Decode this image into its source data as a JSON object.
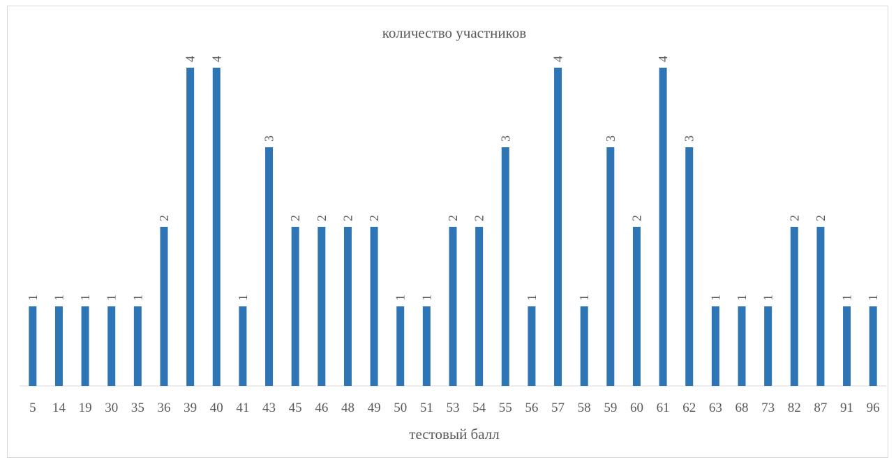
{
  "chart_data": {
    "type": "bar",
    "title": "количество участников",
    "xlabel": "тестовый балл",
    "ylabel": "",
    "ylim": [
      0,
      4
    ],
    "grid": false,
    "legend": "none",
    "bar_color": "#2e75b6",
    "categories": [
      "5",
      "14",
      "19",
      "30",
      "35",
      "36",
      "39",
      "40",
      "41",
      "43",
      "45",
      "46",
      "48",
      "49",
      "50",
      "51",
      "53",
      "54",
      "55",
      "56",
      "57",
      "58",
      "59",
      "60",
      "61",
      "62",
      "63",
      "68",
      "73",
      "82",
      "87",
      "91",
      "96"
    ],
    "values": [
      1,
      1,
      1,
      1,
      1,
      2,
      4,
      4,
      1,
      3,
      2,
      2,
      2,
      2,
      1,
      1,
      2,
      2,
      3,
      1,
      4,
      1,
      3,
      2,
      4,
      3,
      1,
      1,
      1,
      2,
      2,
      1,
      1
    ]
  }
}
